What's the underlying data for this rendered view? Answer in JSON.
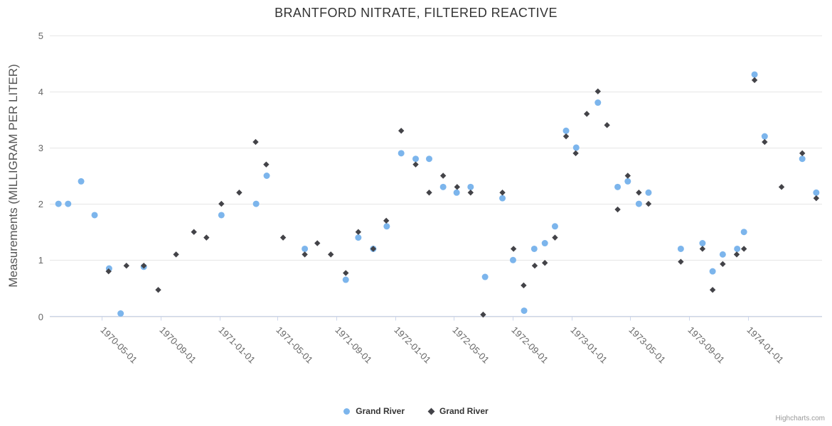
{
  "chart": {
    "title": "BRANTFORD NITRATE, FILTERED REACTIVE",
    "credits": "Highcharts.com"
  },
  "legend": {
    "items": [
      {
        "label": "Grand River",
        "marker": "circle",
        "color": "#7cb5ec"
      },
      {
        "label": "Grand River",
        "marker": "diamond",
        "color": "#434348"
      }
    ]
  },
  "colors": {
    "background": "#ffffff",
    "grid": "#e6e6e6",
    "axis_line": "#ccd6eb",
    "tick": "#ccd6eb",
    "title_text": "#333333",
    "axis_label": "#666666",
    "axis_title": "#555555",
    "credits": "#999999",
    "series_blue": "#7cb5ec",
    "series_dark": "#434348"
  },
  "chart_data": {
    "type": "scatter",
    "title": "BRANTFORD NITRATE, FILTERED REACTIVE",
    "xlabel": "",
    "ylabel": "Measurements (MILLIGRAM PER LITER)",
    "ylim": [
      0,
      5
    ],
    "yticks": [
      0,
      1,
      2,
      3,
      4,
      5
    ],
    "xticks": [
      "1970-05-01",
      "1970-09-01",
      "1971-01-01",
      "1971-05-01",
      "1971-09-01",
      "1972-01-01",
      "1972-05-01",
      "1972-09-01",
      "1973-01-01",
      "1973-05-01",
      "1973-09-01",
      "1974-01-01"
    ],
    "x_range": [
      "1970-01-14",
      "1974-06-04"
    ],
    "grid": "horizontal-only",
    "legend_position": "bottom-center",
    "series": [
      {
        "name": "Grand River",
        "marker": "circle",
        "color": "#7cb5ec",
        "data": [
          [
            "1970-02-01",
            2.0
          ],
          [
            "1970-02-21",
            2.0
          ],
          [
            "1970-03-20",
            2.4
          ],
          [
            "1970-04-17",
            1.8
          ],
          [
            "1970-05-17",
            0.85
          ],
          [
            "1970-06-10",
            0.05
          ],
          [
            "1970-07-28",
            0.88
          ],
          [
            "1971-01-05",
            1.8
          ],
          [
            "1971-03-18",
            2.0
          ],
          [
            "1971-04-09",
            2.5
          ],
          [
            "1971-06-27",
            1.2
          ],
          [
            "1971-09-20",
            0.65
          ],
          [
            "1971-10-16",
            1.4
          ],
          [
            "1971-11-16",
            1.2
          ],
          [
            "1971-12-14",
            1.6
          ],
          [
            "1972-01-13",
            2.9
          ],
          [
            "1972-02-12",
            2.8
          ],
          [
            "1972-03-11",
            2.8
          ],
          [
            "1972-04-09",
            2.3
          ],
          [
            "1972-05-07",
            2.2
          ],
          [
            "1972-06-05",
            2.3
          ],
          [
            "1972-07-05",
            0.7
          ],
          [
            "1972-08-10",
            2.1
          ],
          [
            "1972-09-01",
            1.0
          ],
          [
            "1972-09-24",
            0.1
          ],
          [
            "1972-10-15",
            1.2
          ],
          [
            "1972-11-06",
            1.3
          ],
          [
            "1972-11-27",
            1.6
          ],
          [
            "1972-12-20",
            3.3
          ],
          [
            "1973-01-10",
            3.0
          ],
          [
            "1973-02-24",
            3.8
          ],
          [
            "1973-04-06",
            2.3
          ],
          [
            "1973-04-27",
            2.4
          ],
          [
            "1973-05-20",
            2.0
          ],
          [
            "1973-06-09",
            2.2
          ],
          [
            "1973-08-15",
            1.2
          ],
          [
            "1973-09-29",
            1.3
          ],
          [
            "1973-10-20",
            0.8
          ],
          [
            "1973-11-10",
            1.1
          ],
          [
            "1973-12-10",
            1.2
          ],
          [
            "1973-12-24",
            1.5
          ],
          [
            "1974-01-15",
            4.3
          ],
          [
            "1974-02-05",
            3.2
          ],
          [
            "1974-04-24",
            2.8
          ],
          [
            "1974-05-23",
            2.2
          ]
        ]
      },
      {
        "name": "Grand River",
        "marker": "diamond",
        "color": "#434348",
        "data": [
          [
            "1970-05-16",
            0.8
          ],
          [
            "1970-06-22",
            0.9
          ],
          [
            "1970-07-28",
            0.9
          ],
          [
            "1970-08-27",
            0.47
          ],
          [
            "1970-10-03",
            1.1
          ],
          [
            "1970-11-09",
            1.5
          ],
          [
            "1970-12-05",
            1.4
          ],
          [
            "1971-01-05",
            2.0
          ],
          [
            "1971-02-11",
            2.2
          ],
          [
            "1971-03-17",
            3.1
          ],
          [
            "1971-04-08",
            2.7
          ],
          [
            "1971-05-13",
            1.4
          ],
          [
            "1971-06-27",
            1.1
          ],
          [
            "1971-07-23",
            1.3
          ],
          [
            "1971-08-20",
            1.1
          ],
          [
            "1971-09-20",
            0.77
          ],
          [
            "1971-10-16",
            1.5
          ],
          [
            "1971-11-16",
            1.2
          ],
          [
            "1971-12-13",
            1.7
          ],
          [
            "1972-01-13",
            3.3
          ],
          [
            "1972-02-12",
            2.7
          ],
          [
            "1972-03-11",
            2.2
          ],
          [
            "1972-04-09",
            2.5
          ],
          [
            "1972-05-08",
            2.3
          ],
          [
            "1972-06-05",
            2.2
          ],
          [
            "1972-07-01",
            0.03
          ],
          [
            "1972-08-10",
            2.2
          ],
          [
            "1972-09-02",
            1.2
          ],
          [
            "1972-09-23",
            0.55
          ],
          [
            "1972-10-16",
            0.9
          ],
          [
            "1972-11-06",
            0.95
          ],
          [
            "1972-11-27",
            1.4
          ],
          [
            "1972-12-20",
            3.2
          ],
          [
            "1973-01-09",
            2.9
          ],
          [
            "1973-02-01",
            3.6
          ],
          [
            "1973-02-24",
            4.0
          ],
          [
            "1973-03-15",
            3.4
          ],
          [
            "1973-04-06",
            1.9
          ],
          [
            "1973-04-27",
            2.5
          ],
          [
            "1973-05-20",
            2.2
          ],
          [
            "1973-06-09",
            2.0
          ],
          [
            "1973-08-15",
            0.97
          ],
          [
            "1973-09-29",
            1.2
          ],
          [
            "1973-10-20",
            0.47
          ],
          [
            "1973-11-10",
            0.93
          ],
          [
            "1973-12-09",
            1.1
          ],
          [
            "1973-12-24",
            1.2
          ],
          [
            "1974-01-15",
            4.2
          ],
          [
            "1974-02-05",
            3.1
          ],
          [
            "1974-03-12",
            2.3
          ],
          [
            "1974-04-24",
            2.9
          ],
          [
            "1974-05-23",
            2.1
          ]
        ]
      }
    ]
  }
}
